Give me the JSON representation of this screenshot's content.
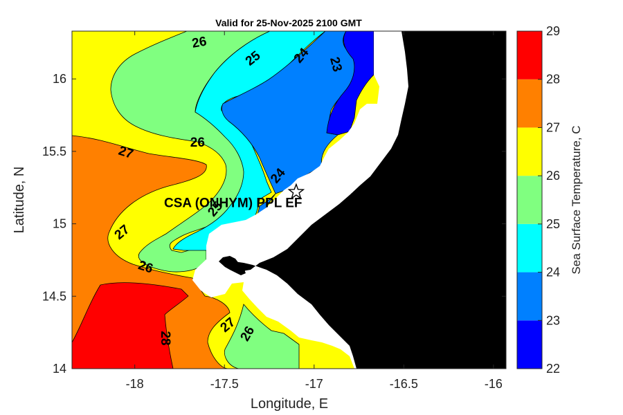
{
  "title": "Valid for 25-Nov-2025 2100 GMT",
  "chart_data": {
    "type": "contour-map",
    "xlabel": "Longitude, E",
    "ylabel": "Latitude, N",
    "xlim": [
      -18.35,
      -15.93
    ],
    "ylim": [
      14.0,
      16.33
    ],
    "x_ticks": [
      "-18",
      "-17.5",
      "-17",
      "-16.5",
      "-16"
    ],
    "x_tick_values": [
      -18,
      -17.5,
      -17,
      -16.5,
      -16
    ],
    "y_ticks": [
      "16",
      "15.5",
      "15",
      "14.5",
      "14"
    ],
    "y_tick_values": [
      16,
      15.5,
      15,
      14.5,
      14
    ],
    "colorbar": {
      "label": "Sea Surface Temperature, C",
      "levels": [
        22,
        23,
        24,
        25,
        26,
        27,
        28,
        29
      ],
      "tick_labels": [
        "29",
        "28",
        "27",
        "26",
        "25",
        "24",
        "23",
        "22"
      ],
      "colors": [
        "#0000ff",
        "#0080ff",
        "#00ffff",
        "#80ff80",
        "#ffff00",
        "#ff8000",
        "#ff0000"
      ]
    },
    "contour_labels": [
      {
        "text": "26",
        "lon": -17.64,
        "lat": 16.25,
        "angle": -10
      },
      {
        "text": "25",
        "lon": -17.34,
        "lat": 16.14,
        "angle": -38
      },
      {
        "text": "24",
        "lon": -17.07,
        "lat": 16.16,
        "angle": -50
      },
      {
        "text": "23",
        "lon": -16.88,
        "lat": 16.1,
        "angle": 75
      },
      {
        "text": "26",
        "lon": -17.65,
        "lat": 15.56,
        "angle": 0
      },
      {
        "text": "27",
        "lon": -18.05,
        "lat": 15.49,
        "angle": 18
      },
      {
        "text": "24",
        "lon": -17.2,
        "lat": 15.33,
        "angle": -50
      },
      {
        "text": "25",
        "lon": -17.55,
        "lat": 15.1,
        "angle": -50
      },
      {
        "text": "27",
        "lon": -18.07,
        "lat": 14.94,
        "angle": -40
      },
      {
        "text": "26",
        "lon": -17.94,
        "lat": 14.7,
        "angle": 18
      },
      {
        "text": "27",
        "lon": -17.48,
        "lat": 14.3,
        "angle": -40
      },
      {
        "text": "26",
        "lon": -17.37,
        "lat": 14.24,
        "angle": -60
      },
      {
        "text": "28",
        "lon": -17.83,
        "lat": 14.21,
        "angle": 90
      }
    ],
    "marker": {
      "symbol": "star",
      "lon": -17.1,
      "lat": 15.22
    },
    "site_label": "CSA (ONHYM) PPL EF",
    "land_color": "#000000",
    "no_data_color": "#ffffff"
  }
}
